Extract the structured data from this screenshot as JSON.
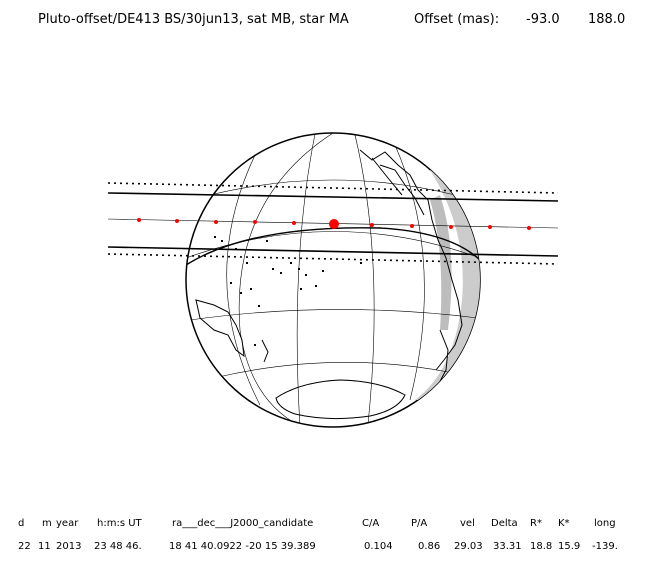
{
  "header": {
    "title": "Pluto-offset/DE413 BS/30jun13, sat MB, star MA",
    "offset_label": "Offset (mas):",
    "offset_x": "-93.0",
    "offset_y": "188.0"
  },
  "table": {
    "headers": [
      "d",
      "m",
      "year",
      "h:m:s UT",
      "ra___dec___J2000_candidate",
      "C/A",
      "P/A",
      "vel",
      "Delta",
      "R*",
      "K*",
      "long"
    ],
    "values": [
      "22",
      "11",
      "2013",
      "23 48 46.",
      "18 41 40.0922 -20 15  39.389",
      "0.104",
      "0.86",
      "29.03",
      "33.31",
      "18.8",
      "15.9",
      "-139."
    ]
  }
}
